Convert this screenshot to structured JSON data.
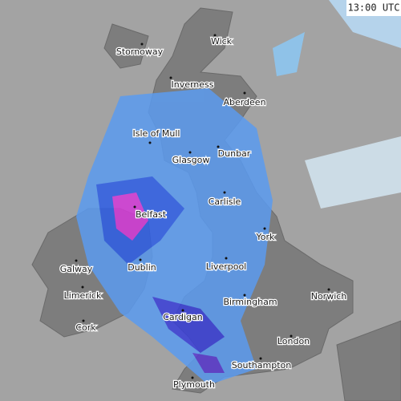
{
  "timestamp": "13:00 UTC",
  "places": [
    {
      "label": "Wick"
    },
    {
      "label": "Stornoway"
    },
    {
      "label": "Inverness"
    },
    {
      "label": "Aberdeen"
    },
    {
      "label": "Isle of Mull"
    },
    {
      "label": "Dunbar"
    },
    {
      "label": "Glasgow"
    },
    {
      "label": "Carlisle"
    },
    {
      "label": "Belfast"
    },
    {
      "label": "York"
    },
    {
      "label": "Galway"
    },
    {
      "label": "Dublin"
    },
    {
      "label": "Liverpool"
    },
    {
      "label": "Limerick"
    },
    {
      "label": "Norwich"
    },
    {
      "label": "Birmingham"
    },
    {
      "label": "Cardigan"
    },
    {
      "label": "Cork"
    },
    {
      "label": "London"
    },
    {
      "label": "Southampton"
    },
    {
      "label": "Plymouth"
    }
  ]
}
